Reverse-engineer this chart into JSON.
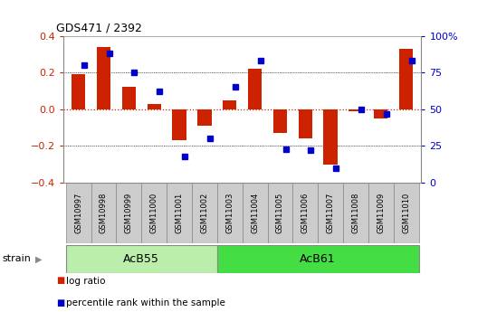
{
  "title": "GDS471 / 2392",
  "samples": [
    "GSM10997",
    "GSM10998",
    "GSM10999",
    "GSM11000",
    "GSM11001",
    "GSM11002",
    "GSM11003",
    "GSM11004",
    "GSM11005",
    "GSM11006",
    "GSM11007",
    "GSM11008",
    "GSM11009",
    "GSM11010"
  ],
  "log_ratio": [
    0.19,
    0.34,
    0.12,
    0.03,
    -0.17,
    -0.09,
    0.05,
    0.22,
    -0.13,
    -0.16,
    -0.3,
    -0.01,
    -0.05,
    0.33
  ],
  "percentile": [
    80,
    88,
    75,
    62,
    18,
    30,
    65,
    83,
    23,
    22,
    10,
    50,
    47,
    83
  ],
  "group1_label": "AcB55",
  "group1_count": 6,
  "group2_label": "AcB61",
  "group2_count": 8,
  "strain_label": "strain",
  "ylim": [
    -0.4,
    0.4
  ],
  "yticks_left": [
    -0.4,
    -0.2,
    0.0,
    0.2,
    0.4
  ],
  "yticks_right": [
    0,
    25,
    50,
    75,
    100
  ],
  "bar_color": "#cc2200",
  "dot_color": "#0000cc",
  "hline_color": "#cc2200",
  "bg_color": "#ffffff",
  "legend_red": "log ratio",
  "legend_blue": "percentile rank within the sample",
  "group1_color": "#bbeeaa",
  "group2_color": "#44dd44",
  "sample_bg": "#cccccc",
  "border_color": "#888888"
}
